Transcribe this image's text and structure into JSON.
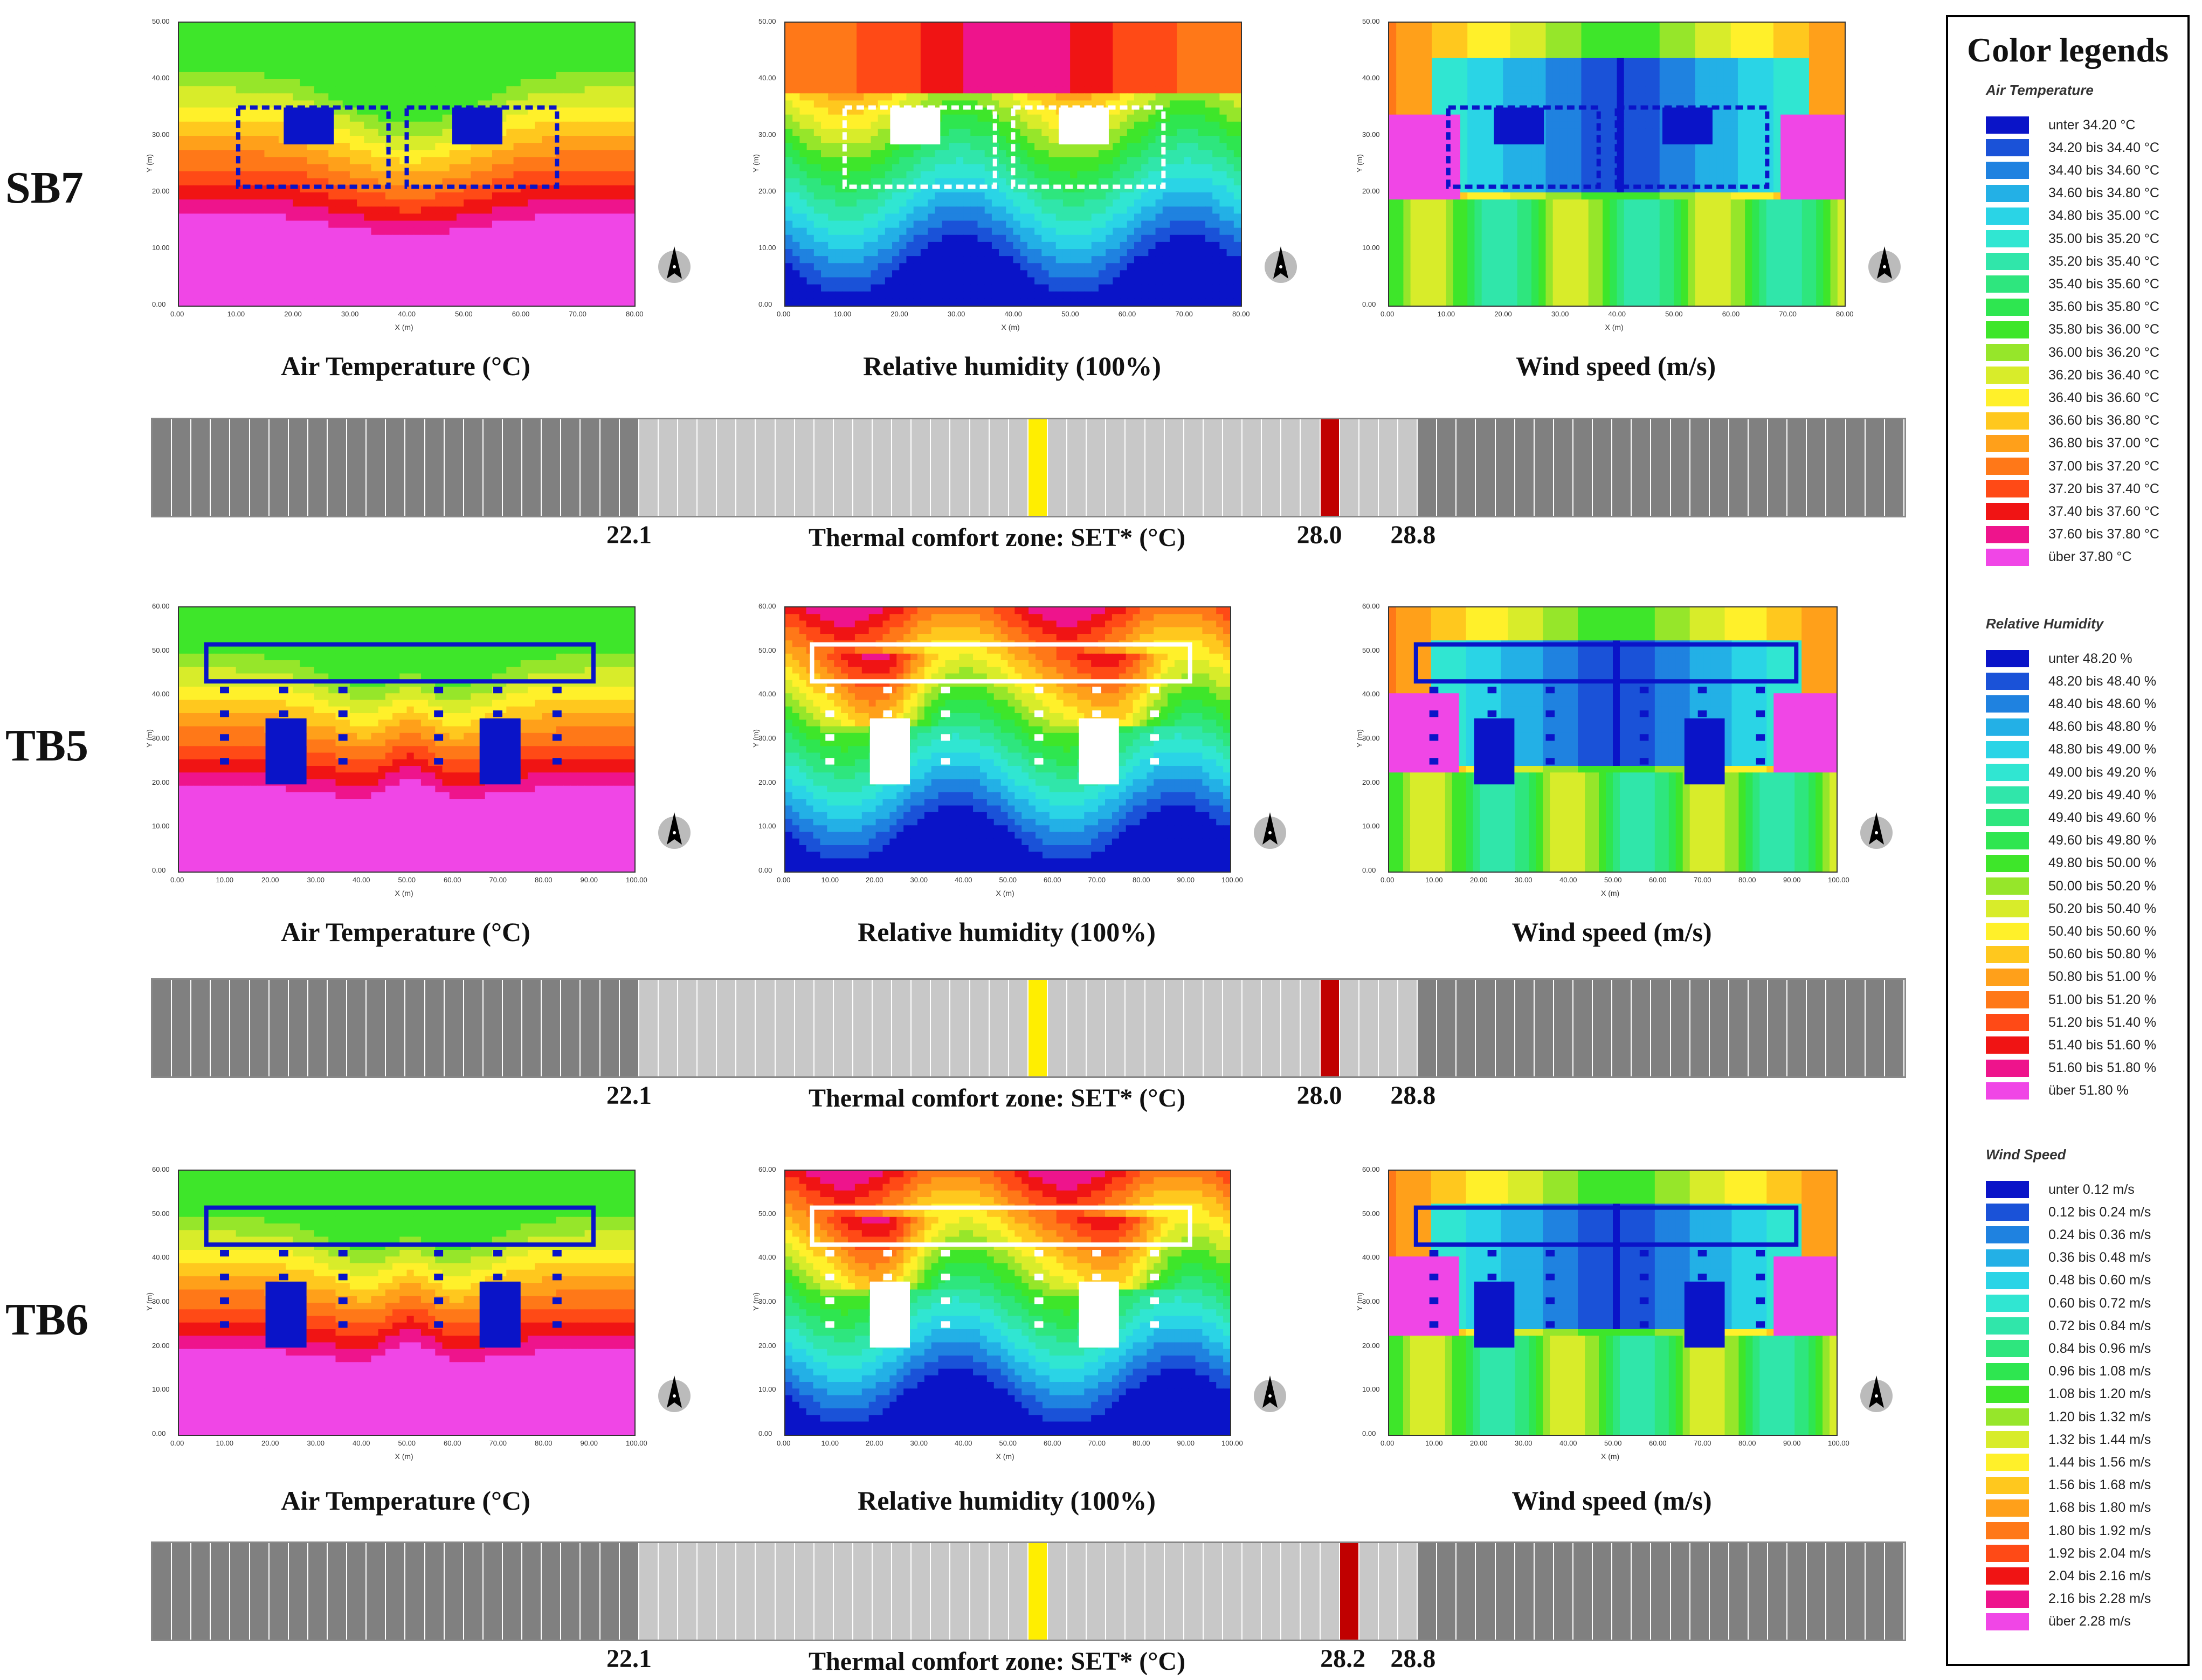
{
  "rows": [
    {
      "label": "SB7",
      "plots": [
        {
          "title": "Air Temperature (°C)",
          "kind": "temp",
          "yticks": [
            "0.00",
            "10.00",
            "20.00",
            "30.00",
            "40.00",
            "50.00"
          ],
          "xticks": [
            "0.00",
            "10.00",
            "20.00",
            "30.00",
            "40.00",
            "50.00",
            "60.00",
            "70.00",
            "80.00"
          ]
        },
        {
          "title": "Relative humidity (100%)",
          "kind": "rh",
          "yticks": [
            "0.00",
            "10.00",
            "20.00",
            "30.00",
            "40.00",
            "50.00"
          ],
          "xticks": [
            "0.00",
            "10.00",
            "20.00",
            "30.00",
            "40.00",
            "50.00",
            "60.00",
            "70.00",
            "80.00"
          ]
        },
        {
          "title": "Wind speed (m/s)",
          "kind": "wind",
          "yticks": [
            "0.00",
            "10.00",
            "20.00",
            "30.00",
            "40.00",
            "50.00"
          ],
          "xticks": [
            "0.00",
            "10.00",
            "20.00",
            "30.00",
            "40.00",
            "50.00",
            "60.00",
            "70.00",
            "80.00"
          ]
        }
      ],
      "scale": {
        "low": "22.1",
        "title": "Thermal comfort zone: SET* (°C)",
        "marker": "28.0",
        "high": "28.8",
        "marker_value": 28.0
      }
    },
    {
      "label": "TB5",
      "plots": [
        {
          "title": "Air Temperature (°C)",
          "kind": "temp",
          "yticks": [
            "0.00",
            "10.00",
            "20.00",
            "30.00",
            "40.00",
            "50.00",
            "60.00"
          ],
          "xticks": [
            "0.00",
            "10.00",
            "20.00",
            "30.00",
            "40.00",
            "50.00",
            "60.00",
            "70.00",
            "80.00",
            "90.00",
            "100.00"
          ]
        },
        {
          "title": "Relative humidity (100%)",
          "kind": "rh",
          "yticks": [
            "0.00",
            "10.00",
            "20.00",
            "30.00",
            "40.00",
            "50.00",
            "60.00"
          ],
          "xticks": [
            "0.00",
            "10.00",
            "20.00",
            "30.00",
            "40.00",
            "50.00",
            "60.00",
            "70.00",
            "80.00",
            "90.00",
            "100.00"
          ]
        },
        {
          "title": "Wind speed (m/s)",
          "kind": "wind",
          "yticks": [
            "0.00",
            "10.00",
            "20.00",
            "30.00",
            "40.00",
            "50.00",
            "60.00"
          ],
          "xticks": [
            "0.00",
            "10.00",
            "20.00",
            "30.00",
            "40.00",
            "50.00",
            "60.00",
            "70.00",
            "80.00",
            "90.00",
            "100.00"
          ]
        }
      ],
      "scale": {
        "low": "22.1",
        "title": "Thermal comfort zone: SET* (°C)",
        "marker": "28.0",
        "high": "28.8",
        "marker_value": 28.0
      }
    },
    {
      "label": "TB6",
      "plots": [
        {
          "title": "Air Temperature (°C)",
          "kind": "temp",
          "yticks": [
            "0.00",
            "10.00",
            "20.00",
            "30.00",
            "40.00",
            "50.00",
            "60.00"
          ],
          "xticks": [
            "0.00",
            "10.00",
            "20.00",
            "30.00",
            "40.00",
            "50.00",
            "60.00",
            "70.00",
            "80.00",
            "90.00",
            "100.00"
          ]
        },
        {
          "title": "Relative humidity (100%)",
          "kind": "rh",
          "yticks": [
            "0.00",
            "10.00",
            "20.00",
            "30.00",
            "40.00",
            "50.00",
            "60.00"
          ],
          "xticks": [
            "0.00",
            "10.00",
            "20.00",
            "30.00",
            "40.00",
            "50.00",
            "60.00",
            "70.00",
            "80.00",
            "90.00",
            "100.00"
          ]
        },
        {
          "title": "Wind speed (m/s)",
          "kind": "wind",
          "yticks": [
            "0.00",
            "10.00",
            "20.00",
            "30.00",
            "40.00",
            "50.00",
            "60.00"
          ],
          "xticks": [
            "0.00",
            "10.00",
            "20.00",
            "30.00",
            "40.00",
            "50.00",
            "60.00",
            "70.00",
            "80.00",
            "90.00",
            "100.00"
          ]
        }
      ],
      "scale": {
        "low": "22.1",
        "title": "Thermal comfort zone: SET* (°C)",
        "marker": "28.2",
        "high": "28.8",
        "marker_value": 28.2
      }
    }
  ],
  "axis": {
    "x_label": "X (m)",
    "y_label": "Y (m)"
  },
  "legend": {
    "title": "Color legends",
    "groups": [
      {
        "title": "Air Temperature",
        "items": [
          {
            "label": "unter 34.20 °C",
            "color": "#0a14c8"
          },
          {
            "label": "34.20 bis 34.40 °C",
            "color": "#1a52d8"
          },
          {
            "label": "34.40 bis 34.60 °C",
            "color": "#1f82e0"
          },
          {
            "label": "34.60 bis 34.80 °C",
            "color": "#23b0e6"
          },
          {
            "label": "34.80 bis 35.00 °C",
            "color": "#2ad4e6"
          },
          {
            "label": "35.00 bis 35.20 °C",
            "color": "#30e6d2"
          },
          {
            "label": "35.20 bis 35.40 °C",
            "color": "#30e6aa"
          },
          {
            "label": "35.40 bis 35.60 °C",
            "color": "#2ee67e"
          },
          {
            "label": "35.60 bis 35.80 °C",
            "color": "#2ee650"
          },
          {
            "label": "35.80 bis 36.00 °C",
            "color": "#3ee62a"
          },
          {
            "label": "36.00 bis 36.20 °C",
            "color": "#96e62a"
          },
          {
            "label": "36.20 bis 36.40 °C",
            "color": "#d8ec2a"
          },
          {
            "label": "36.40 bis 36.60 °C",
            "color": "#fff02a"
          },
          {
            "label": "36.60 bis 36.80 °C",
            "color": "#ffc81e"
          },
          {
            "label": "36.80 bis 37.00 °C",
            "color": "#ffa01a"
          },
          {
            "label": "37.00 bis 37.20 °C",
            "color": "#ff7818"
          },
          {
            "label": "37.20 bis 37.40 °C",
            "color": "#ff4a16"
          },
          {
            "label": "37.40 bis 37.60 °C",
            "color": "#f01414"
          },
          {
            "label": "37.60 bis 37.80 °C",
            "color": "#ee148c"
          },
          {
            "label": "über 37.80 °C",
            "color": "#f046e6"
          }
        ]
      },
      {
        "title": "Relative Humidity",
        "items": [
          {
            "label": "unter 48.20 %",
            "color": "#0a14c8"
          },
          {
            "label": "48.20 bis 48.40 %",
            "color": "#1a52d8"
          },
          {
            "label": "48.40 bis 48.60 %",
            "color": "#1f82e0"
          },
          {
            "label": "48.60 bis 48.80 %",
            "color": "#23b0e6"
          },
          {
            "label": "48.80 bis 49.00 %",
            "color": "#2ad4e6"
          },
          {
            "label": "49.00 bis 49.20 %",
            "color": "#30e6d2"
          },
          {
            "label": "49.20 bis 49.40 %",
            "color": "#30e6aa"
          },
          {
            "label": "49.40 bis 49.60 %",
            "color": "#2ee67e"
          },
          {
            "label": "49.60 bis 49.80 %",
            "color": "#2ee650"
          },
          {
            "label": "49.80 bis 50.00 %",
            "color": "#3ee62a"
          },
          {
            "label": "50.00 bis 50.20 %",
            "color": "#96e62a"
          },
          {
            "label": "50.20 bis 50.40 %",
            "color": "#d8ec2a"
          },
          {
            "label": "50.40 bis 50.60 %",
            "color": "#fff02a"
          },
          {
            "label": "50.60 bis 50.80 %",
            "color": "#ffc81e"
          },
          {
            "label": "50.80 bis 51.00 %",
            "color": "#ffa01a"
          },
          {
            "label": "51.00 bis 51.20 %",
            "color": "#ff7818"
          },
          {
            "label": "51.20 bis 51.40 %",
            "color": "#ff4a16"
          },
          {
            "label": "51.40 bis 51.60 %",
            "color": "#f01414"
          },
          {
            "label": "51.60 bis 51.80 %",
            "color": "#ee148c"
          },
          {
            "label": "über 51.80 %",
            "color": "#f046e6"
          }
        ]
      },
      {
        "title": "Wind Speed",
        "items": [
          {
            "label": "unter 0.12 m/s",
            "color": "#0a14c8"
          },
          {
            "label": "0.12 bis 0.24 m/s",
            "color": "#1a52d8"
          },
          {
            "label": "0.24 bis 0.36 m/s",
            "color": "#1f82e0"
          },
          {
            "label": "0.36 bis 0.48 m/s",
            "color": "#23b0e6"
          },
          {
            "label": "0.48 bis 0.60 m/s",
            "color": "#2ad4e6"
          },
          {
            "label": "0.60 bis 0.72 m/s",
            "color": "#30e6d2"
          },
          {
            "label": "0.72 bis 0.84 m/s",
            "color": "#30e6aa"
          },
          {
            "label": "0.84 bis 0.96 m/s",
            "color": "#2ee67e"
          },
          {
            "label": "0.96 bis 1.08 m/s",
            "color": "#2ee650"
          },
          {
            "label": "1.08 bis 1.20 m/s",
            "color": "#3ee62a"
          },
          {
            "label": "1.20 bis 1.32 m/s",
            "color": "#96e62a"
          },
          {
            "label": "1.32 bis 1.44 m/s",
            "color": "#d8ec2a"
          },
          {
            "label": "1.44 bis 1.56 m/s",
            "color": "#fff02a"
          },
          {
            "label": "1.56 bis 1.68 m/s",
            "color": "#ffc81e"
          },
          {
            "label": "1.68 bis 1.80 m/s",
            "color": "#ffa01a"
          },
          {
            "label": "1.80 bis 1.92 m/s",
            "color": "#ff7818"
          },
          {
            "label": "1.92 bis 2.04 m/s",
            "color": "#ff4a16"
          },
          {
            "label": "2.04 bis 2.16 m/s",
            "color": "#f01414"
          },
          {
            "label": "2.16 bis 2.28 m/s",
            "color": "#ee148c"
          },
          {
            "label": "über 2.28 m/s",
            "color": "#f046e6"
          }
        ]
      }
    ]
  },
  "comfort_scale": {
    "range_min": 18.0,
    "range_max": 33.0,
    "segments": 90,
    "comfort_low": 22.1,
    "comfort_high": 28.8,
    "neutral_value": 25.5,
    "neutral_color": "#ffee00",
    "marker_color": "#c00000"
  }
}
